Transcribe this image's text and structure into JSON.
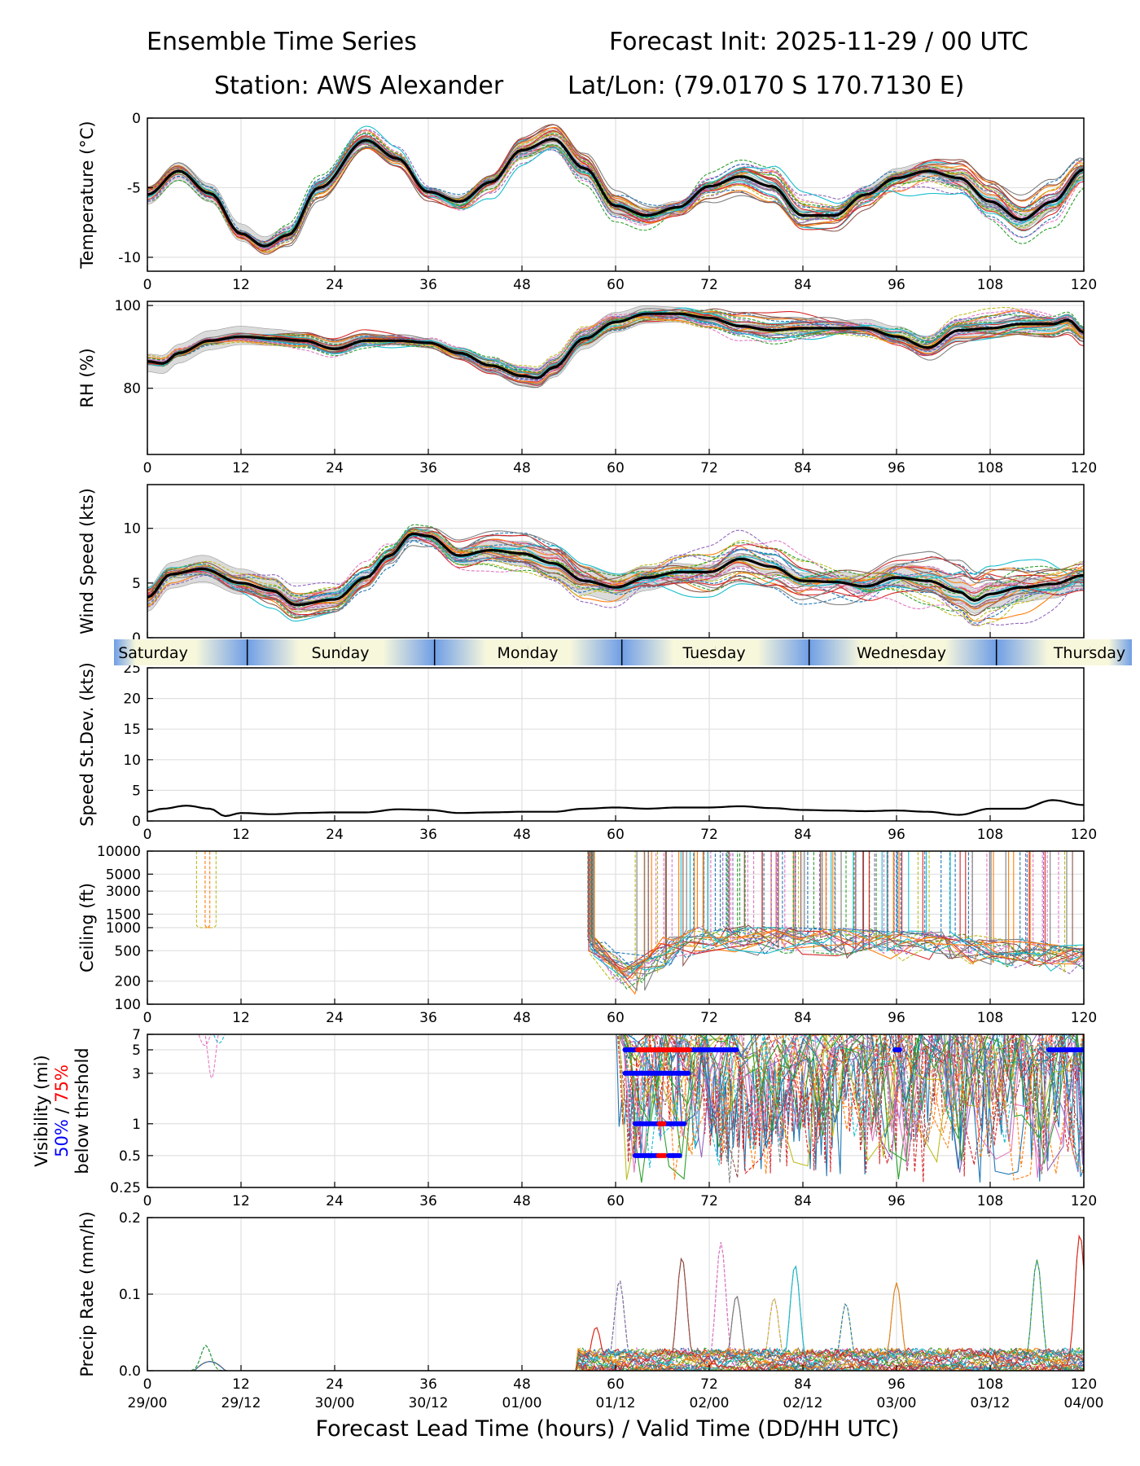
{
  "header": {
    "title_left": "Ensemble Time Series",
    "title_right": "Forecast Init: 2025-11-29 / 00 UTC",
    "station": "Station: AWS Alexander",
    "latlon": "Lat/Lon: (79.0170 S 170.7130 E)"
  },
  "x_axis": {
    "label": "Forecast Lead Time (hours) / Valid Time (DD/HH UTC)",
    "range": [
      0,
      120
    ],
    "ticks": [
      0,
      12,
      24,
      36,
      48,
      60,
      72,
      84,
      96,
      108,
      120
    ],
    "tick_labels": [
      "0",
      "12",
      "24",
      "36",
      "48",
      "60",
      "72",
      "84",
      "96",
      "108",
      "120"
    ],
    "valid_labels": [
      "29/00",
      "29/12",
      "30/00",
      "30/12",
      "01/00",
      "01/12",
      "02/00",
      "02/12",
      "03/00",
      "03/12",
      "04/00"
    ]
  },
  "day_band": {
    "days": [
      "Saturday",
      "Sunday",
      "Monday",
      "Tuesday",
      "Wednesday",
      "Thursday"
    ],
    "boundaries_hours": [
      12.8,
      36.8,
      60.8,
      84.8,
      108.8
    ],
    "colors": {
      "light": "#f7f7dc",
      "dark": "#6f9ee6"
    }
  },
  "colors": {
    "member_palette": [
      "#1f77b4",
      "#ff7f0e",
      "#2ca02c",
      "#d62728",
      "#9467bd",
      "#8c564b",
      "#e377c2",
      "#7f7f7f",
      "#bcbd22",
      "#17becf"
    ],
    "mean": "#000000",
    "spread": "#cccccc",
    "vis50": "#0000ff",
    "vis75": "#ff0000",
    "grid": "#e0e0e0"
  },
  "ensemble": {
    "members": 30
  },
  "chart_data": [
    {
      "id": "temperature",
      "type": "line",
      "ylabel": "Temperature (°C)",
      "ylim": [
        -11,
        0
      ],
      "yticks": [
        0,
        -5,
        -10
      ],
      "ytick_labels": [
        "0",
        "-5",
        "-10"
      ],
      "mean": {
        "x": [
          0,
          4,
          8,
          12,
          15,
          18,
          22,
          28,
          32,
          36,
          40,
          44,
          48,
          52,
          56,
          60,
          64,
          68,
          72,
          76,
          80,
          84,
          88,
          92,
          96,
          100,
          104,
          108,
          112,
          116,
          120
        ],
        "y": [
          -5.5,
          -3.8,
          -5.4,
          -8.3,
          -9.2,
          -8.4,
          -5.0,
          -1.6,
          -2.9,
          -5.3,
          -6.0,
          -4.6,
          -2.3,
          -1.5,
          -3.6,
          -6.3,
          -7.0,
          -6.4,
          -4.9,
          -4.2,
          -4.9,
          -7.0,
          -7.0,
          -5.5,
          -4.3,
          -3.8,
          -4.3,
          -6.0,
          -7.3,
          -6.0,
          -3.7
        ]
      },
      "spread_halfwidth": 0.7,
      "member_noise": 0.9
    },
    {
      "id": "rh",
      "type": "line",
      "ylabel": "RH (%)",
      "ylim": [
        64,
        101
      ],
      "yticks": [
        100,
        80
      ],
      "ytick_labels": [
        "100",
        "80"
      ],
      "mean": {
        "x": [
          0,
          2,
          4,
          8,
          12,
          16,
          20,
          24,
          28,
          32,
          36,
          40,
          44,
          48,
          50,
          52,
          56,
          60,
          64,
          68,
          72,
          76,
          80,
          84,
          88,
          92,
          96,
          100,
          104,
          108,
          112,
          116,
          118,
          120
        ],
        "y": [
          86.5,
          86,
          88.5,
          91.5,
          92.5,
          92,
          91.5,
          89.5,
          91.5,
          91.5,
          91,
          88.5,
          85.5,
          83,
          82.5,
          85,
          92,
          96,
          98,
          98,
          97,
          95,
          94,
          94.5,
          94.5,
          94.5,
          92.5,
          89.8,
          94,
          94.5,
          95.5,
          95.5,
          96.5,
          93.5
        ]
      },
      "spread_halfwidth": 2.5,
      "member_noise": 2.2
    },
    {
      "id": "wind_speed",
      "type": "line",
      "ylabel": "Wind Speed (kts)",
      "ylim": [
        0,
        14
      ],
      "yticks": [
        10,
        5,
        0
      ],
      "ytick_labels": [
        "10",
        "5",
        "0"
      ],
      "mean": {
        "x": [
          0,
          3,
          7,
          12,
          16,
          19,
          24,
          28,
          31,
          34,
          36,
          40,
          44,
          48,
          52,
          56,
          60,
          64,
          68,
          72,
          76,
          80,
          84,
          88,
          92,
          96,
          100,
          104,
          106,
          108,
          112,
          116,
          120
        ],
        "y": [
          3.7,
          5.8,
          6.3,
          5.0,
          4.3,
          3.0,
          3.5,
          5.5,
          7.5,
          9.5,
          9.3,
          7.5,
          8.0,
          7.7,
          6.8,
          5.2,
          4.6,
          5.5,
          6.0,
          6.0,
          7.2,
          6.5,
          5.2,
          5.1,
          4.7,
          5.5,
          5.2,
          4.2,
          3.4,
          4.0,
          4.6,
          4.9,
          5.7
        ]
      },
      "spread_halfwidth": 1.3,
      "member_noise": 1.6
    },
    {
      "id": "speed_stdev",
      "type": "line",
      "ylabel": "Speed St.Dev. (kts)",
      "ylim": [
        0,
        25
      ],
      "yticks": [
        25,
        20,
        15,
        10,
        5,
        0
      ],
      "ytick_labels": [
        "25",
        "20",
        "15",
        "10",
        "5",
        "0"
      ],
      "mean": {
        "x": [
          0,
          2,
          5,
          8,
          10,
          12,
          16,
          20,
          24,
          28,
          32,
          36,
          40,
          44,
          48,
          52,
          56,
          60,
          64,
          68,
          72,
          76,
          80,
          84,
          88,
          92,
          96,
          100,
          104,
          108,
          112,
          116,
          120
        ],
        "y": [
          1.5,
          2.0,
          2.5,
          2.0,
          0.8,
          1.3,
          1.1,
          1.3,
          1.4,
          1.4,
          1.9,
          1.8,
          1.3,
          1.4,
          1.5,
          1.5,
          2.0,
          2.2,
          2.0,
          2.2,
          2.2,
          2.4,
          2.1,
          1.8,
          1.7,
          1.6,
          1.7,
          1.5,
          1.0,
          2.0,
          2.0,
          3.4,
          2.6
        ]
      }
    },
    {
      "id": "ceiling",
      "type": "line",
      "scale": "log",
      "ylabel": "Ceiling (ft)",
      "ylim": [
        100,
        10000
      ],
      "yticks": [
        10000,
        5000,
        3000,
        1500,
        1000,
        500,
        200,
        100
      ],
      "ytick_labels": [
        "10000",
        "5000",
        "3000",
        "1500",
        "1000",
        "500",
        "200",
        "100"
      ],
      "early_blips": [
        {
          "start": 6.3,
          "end": 8.8,
          "low": 1000
        },
        {
          "start": 7.4,
          "end": 8.0,
          "low": 1000
        }
      ],
      "low_cloud_trend": {
        "x": [
          53,
          57,
          60,
          62,
          66,
          72,
          80,
          90,
          100,
          110,
          120
        ],
        "y": [
          900,
          600,
          300,
          200,
          500,
          800,
          700,
          650,
          600,
          500,
          400
        ]
      }
    },
    {
      "id": "visibility",
      "type": "line",
      "scale": "log",
      "ylabel": "Visibility (mi)",
      "ylabel_50": "50%",
      "ylabel_sep": " / ",
      "ylabel_75": "75%",
      "ylabel_sub": "below thrshold",
      "ylim": [
        0.25,
        7
      ],
      "yticks": [
        7,
        5,
        3,
        1,
        0.5,
        0.25
      ],
      "ytick_labels": [
        "7",
        "5",
        "3",
        "1",
        "0.5",
        "0.25"
      ],
      "threshold_bars": [
        {
          "level": 5,
          "pct": "50%",
          "start": 61.2,
          "end": 75.5
        },
        {
          "level": 5,
          "pct": "75%",
          "start": 62.8,
          "end": 69.5
        },
        {
          "level": 5,
          "pct": "50%",
          "start": 95.8,
          "end": 96.4
        },
        {
          "level": 5,
          "pct": "50%",
          "start": 115.5,
          "end": 120
        },
        {
          "level": 3,
          "pct": "50%",
          "start": 61.2,
          "end": 69.3
        },
        {
          "level": 1,
          "pct": "50%",
          "start": 62.5,
          "end": 68.8
        },
        {
          "level": 1,
          "pct": "75%",
          "start": 65.6,
          "end": 66.2
        },
        {
          "level": 0.5,
          "pct": "50%",
          "start": 62.5,
          "end": 65.5
        },
        {
          "level": 0.5,
          "pct": "75%",
          "start": 65.5,
          "end": 66.4
        },
        {
          "level": 0.5,
          "pct": "50%",
          "start": 66.8,
          "end": 68.2
        }
      ]
    },
    {
      "id": "precip_rate",
      "type": "line",
      "ylabel": "Precip Rate (mm/h)",
      "ylim": [
        0,
        0.2
      ],
      "yticks": [
        0.2,
        0.1,
        0.0
      ],
      "ytick_labels": [
        "0.2",
        "0.1",
        "0.0"
      ],
      "peaks": [
        {
          "x": 7.5,
          "y": 0.033
        },
        {
          "x": 57.5,
          "y": 0.057
        },
        {
          "x": 60.5,
          "y": 0.118
        },
        {
          "x": 68.5,
          "y": 0.148
        },
        {
          "x": 73.5,
          "y": 0.168
        },
        {
          "x": 75.5,
          "y": 0.098
        },
        {
          "x": 80.3,
          "y": 0.095
        },
        {
          "x": 83.0,
          "y": 0.138
        },
        {
          "x": 89.5,
          "y": 0.088
        },
        {
          "x": 96.0,
          "y": 0.115
        },
        {
          "x": 114.0,
          "y": 0.145
        },
        {
          "x": 119.5,
          "y": 0.178
        }
      ]
    }
  ]
}
